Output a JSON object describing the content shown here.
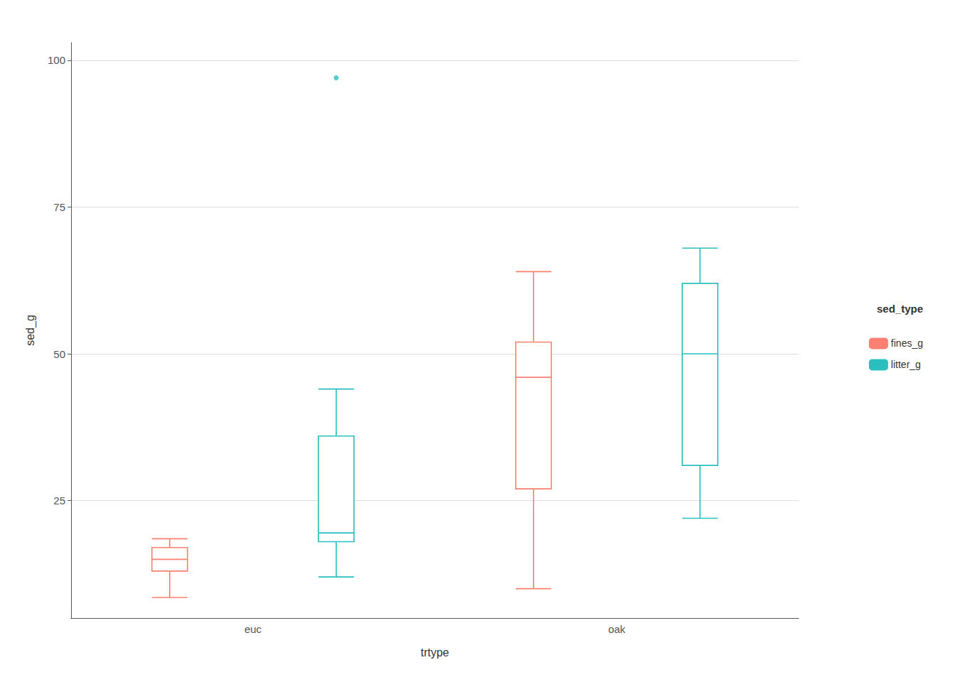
{
  "chart_data": {
    "type": "boxplot",
    "xlabel": "trtype",
    "ylabel": "sed_g",
    "legend_title": "sed_type",
    "legend": "right",
    "grid": true,
    "categories": [
      "euc",
      "oak"
    ],
    "ylim": [
      5,
      103
    ],
    "yticks": [
      25,
      50,
      75,
      100
    ],
    "series": [
      {
        "name": "fines_g",
        "color": "#FA8072",
        "values": [
          {
            "whisker_low": 8.5,
            "q1": 13.0,
            "median": 15.0,
            "q3": 17.0,
            "whisker_high": 18.5
          },
          {
            "whisker_low": 10.0,
            "q1": 27.0,
            "median": 46.0,
            "q3": 52.0,
            "whisker_high": 64.0
          }
        ],
        "outliers": [
          [],
          []
        ]
      },
      {
        "name": "litter_g",
        "color": "#2ABFBF",
        "values": [
          {
            "whisker_low": 12.0,
            "q1": 18.0,
            "median": 19.5,
            "q3": 36.0,
            "whisker_high": 44.0
          },
          {
            "whisker_low": 22.0,
            "q1": 31.0,
            "median": 50.0,
            "q3": 62.0,
            "whisker_high": 68.0
          }
        ],
        "outliers": [
          [
            97.0
          ],
          []
        ]
      }
    ]
  }
}
